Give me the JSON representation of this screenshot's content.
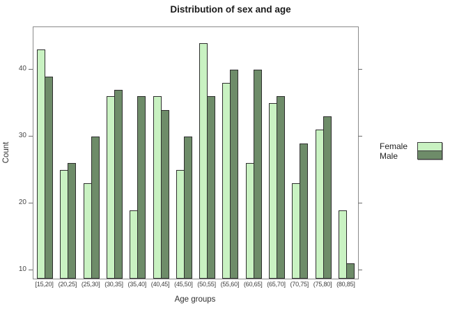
{
  "chart_data": {
    "type": "bar",
    "title": "Distribution of sex and age",
    "xlabel": "Age groups",
    "ylabel": "Count",
    "categories": [
      "[15,20]",
      "(20,25]",
      "(25,30]",
      "(30,35]",
      "(35,40]",
      "(40,45]",
      "(45,50]",
      "(50,55]",
      "(55,60]",
      "(60,65]",
      "(65,70]",
      "(70,75]",
      "(75,80]",
      "(80,85]"
    ],
    "series": [
      {
        "name": "Female",
        "color": "#C9F2C2",
        "values": [
          43,
          25,
          23,
          36,
          19,
          36,
          25,
          44,
          38,
          26,
          35,
          23,
          31,
          19
        ]
      },
      {
        "name": "Male",
        "color": "#6E8C69",
        "values": [
          39,
          26,
          30,
          37,
          36,
          34,
          30,
          36,
          40,
          40,
          36,
          29,
          33,
          11
        ]
      }
    ],
    "yticks": [
      "10",
      "20",
      "30",
      "40"
    ],
    "ylim": [
      8.75,
      46.35
    ],
    "grid": false,
    "legend_position": "right-middle"
  },
  "colors": {
    "female_fill": "#C9F2C2",
    "male_fill": "#6E8C69",
    "bar_border": "#2e2e2e",
    "plot_box_border": "#8a8a8a",
    "background": "#ffffff"
  }
}
